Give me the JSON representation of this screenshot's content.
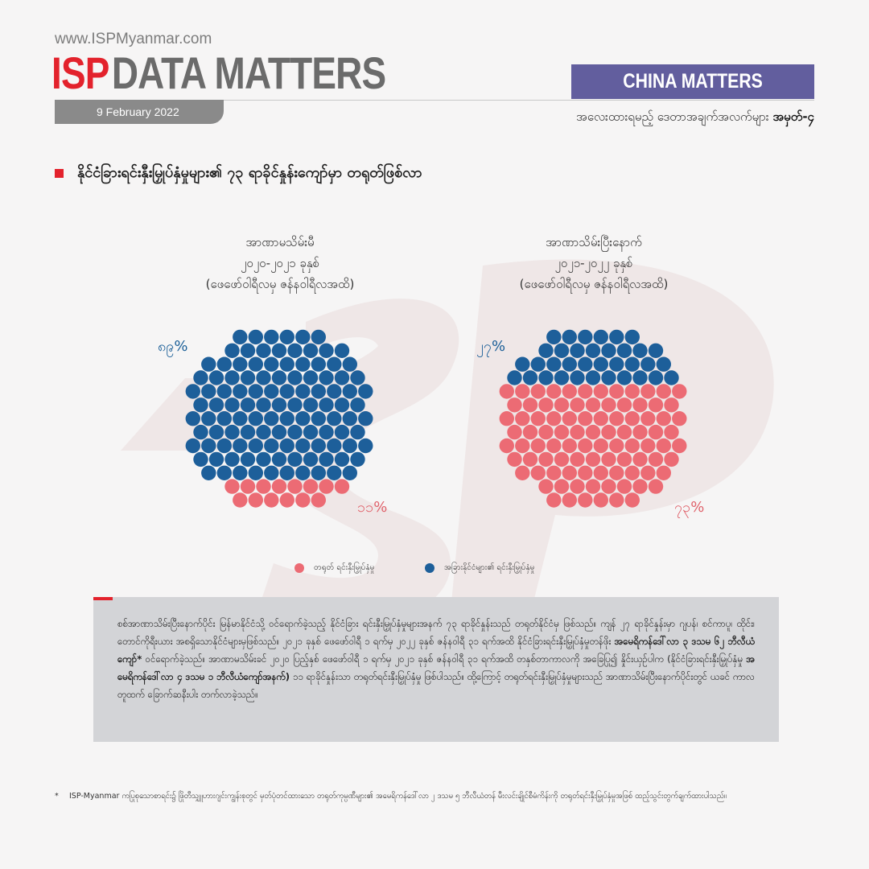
{
  "header": {
    "website": "www.ISPMyanmar.com",
    "brand_isp": "ISP",
    "brand_rest": "DATA MATTERS",
    "date": "9 February 2022",
    "section_label": "CHINA MATTERS",
    "series_note": "အလေးထားရမည့် ဒေတာအချက်အလက်များ",
    "series_number": "အမှတ်-၄"
  },
  "headline": "နိုင်ငံခြားရင်းနှီးမြှုပ်နှံမှုများ၏ ၇၃ ရာခိုင်နှုန်းကျော်မှာ တရုတ်ဖြစ်လာ",
  "colors": {
    "china": "#ec6b74",
    "other": "#1d5f9a",
    "accent": "#e3222c",
    "purple": "#625e9e"
  },
  "chart_data": [
    {
      "type": "dot-matrix",
      "title_lines": [
        "အာဏာမသိမ်းမီ",
        "၂၀၂၀-၂၀၂၁ ခုနှစ်",
        "(ဖေဖော်ဝါရီလမှ ဇန်နဝါရီလအထိ)"
      ],
      "series": [
        {
          "name": "အခြားနိုင်ငံများ၏ ရင်းနှီးမြှုပ်နှံမှု",
          "value": 89,
          "label": "၈၉%"
        },
        {
          "name": "တရုတ် ရင်းနှီးမြှုပ်နှံမှု",
          "value": 11,
          "label": "၁၁%"
        }
      ]
    },
    {
      "type": "dot-matrix",
      "title_lines": [
        "အာဏာသိမ်းပြီးနောက်",
        "၂၀၂၁-၂၀၂၂ ခုနှစ်",
        "(ဖေဖော်ဝါရီလမှ ဇန်နဝါရီလအထိ)"
      ],
      "series": [
        {
          "name": "အခြားနိုင်ငံများ၏ ရင်းနှီးမြှုပ်နှံမှု",
          "value": 27,
          "label": "၂၇%"
        },
        {
          "name": "တရုတ် ရင်းနှီးမြှုပ်နှံမှု",
          "value": 73,
          "label": "၇၃%"
        }
      ]
    }
  ],
  "legend": {
    "china": "တရုတ် ရင်းနှီးမြှုပ်နှံမှု",
    "other": "အခြားနိုင်ငံများ၏ ရင်းနှီးမြှုပ်နှံမှု"
  },
  "body_text": {
    "p1": "စစ်အာဏာသိမ်းပြီးနောက်ပိုင်း မြန်မာနိုင်ငံသို့ ဝင်ရောက်ခဲ့သည့် နိုင်ငံခြား ရင်းနှီးမြှုပ်နှံမှုများအနက် ၇၃ ရာခိုင်နှုန်းသည် တရုတ်နိုင်ငံမှ ဖြစ်သည်။ ကျန် ၂၇ ရာခိုင်နှုန်းမှာ ဂျပန်၊ စင်ကာပူ၊ ထိုင်း၊ တောင်ကိုရီးယား အစရှိသောနိုင်ငံများမှဖြစ်သည်။ ၂၀၂၁ ခုနှစ် ဖေဖော်ဝါရီ ၁ ရက်မှ ၂၀၂၂ ခုနှစ် ဇန်နဝါရီ ၃၁ ရက်အထိ နိုင်ငံခြားရင်းနှီးမြှုပ်နှံမှုတန်ဖိုး",
    "b1": "အမေရိကန်ဒေါ်လာ ၃ ဒသမ ၆၂ ဘီလီယံကျော်*",
    "p2": " ဝင်ရောက်ခဲ့သည်။ အာဏာမသိမ်းခင် ၂၀၂၀ ပြည့်နှစ် ဖေဖော်ဝါရီ ၁ ရက်မှ ၂၀၂၁ ခုနှစ် ဇန်နဝါရီ ၃၁ ရက်အထိ တနှစ်တာကာလကို အခြေပြု၍ နှိုင်းယှဉ်ပါက (နိုင်ငံခြားရင်းနှီးမြှုပ်နှံမှု ",
    "b2": "အမေရိကန်ဒေါ်လာ ၄ ဒသမ ၁ ဘီလီယံကျော်အနက်)",
    "p3": " ၁၁ ရာခိုင်နှုန်းသာ တရုတ်ရင်းနှီးမြှုပ်နှံမှု ဖြစ်ပါသည်။ ထို့ကြောင့် တရုတ်ရင်းနှီးမြှုပ်နှံမှုများသည် အာဏာသိမ်းပြီးနောက်ပိုင်းတွင် ယခင် ကာလတူထက် ခြောက်ဆနီးပါး တက်လာခဲ့သည်။"
  },
  "footnote": {
    "star": "*",
    "text": "ISP-Myanmar ကပြုစုသောစာရင်း၌ ဖြိုတီသျှူဟားဂျင်းကျွန်းစုတွင် မှတ်ပုံတင်ထားသော တရုတ်ကုမ္ပဏီများ၏ အမေရိကန်ဒေါ်လာ ၂ ဒသမ ၅ ဘီလီယံတန် မီးလင်းချိုင်စီမံကိန်းကို တရုတ်ရင်းနှီးမြှုပ်နှံမှုအဖြစ် ထည့်သွင်းတွက်ချက်ထားပါသည်။"
  }
}
